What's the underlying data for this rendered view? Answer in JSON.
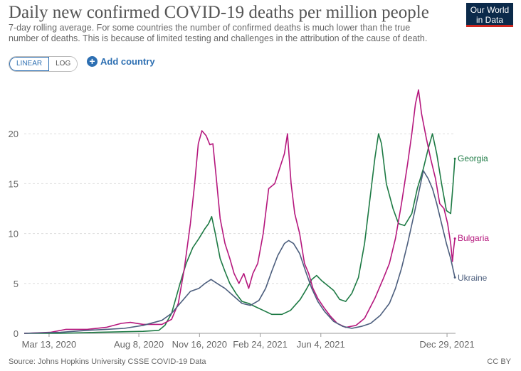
{
  "header": {
    "title": "Daily new confirmed COVID-19 deaths per million people",
    "subtitle": "7-day rolling average. For some countries the number of confirmed deaths is much lower than the true number of deaths. This is because of limited testing and challenges in the attribution of the cause of death.",
    "logo_line1": "Our World",
    "logo_line2": "in Data"
  },
  "controls": {
    "linear_label": "LINEAR",
    "log_label": "LOG",
    "add_country_label": "Add country"
  },
  "footer": {
    "source": "Source: Johns Hopkins University CSSE COVID-19 Data",
    "license": "CC BY"
  },
  "colors": {
    "Georgia": "#1d7a44",
    "Bulgaria": "#b5177d",
    "Ukraine": "#4c5e7d",
    "grid": "#dddddd",
    "axis_text": "#666666"
  },
  "chart_data": {
    "type": "line",
    "title": "Daily new confirmed COVID-19 deaths per million people",
    "x_ticks": [
      "Mar 13, 2020",
      "Aug 8, 2020",
      "Nov 16, 2020",
      "Feb 24, 2021",
      "Jun 4, 2021",
      "Dec 29, 2021"
    ],
    "x_range": [
      "2020-02-01",
      "2022-01-12"
    ],
    "ylim": [
      0,
      25
    ],
    "y_ticks": [
      0,
      5,
      10,
      15,
      20
    ],
    "grid": true,
    "legend": "right, at line ends",
    "series": [
      {
        "name": "Georgia",
        "points": [
          [
            "2020-02-01",
            0
          ],
          [
            "2020-04-01",
            0
          ],
          [
            "2020-06-01",
            0.1
          ],
          [
            "2020-08-15",
            0.2
          ],
          [
            "2020-09-10",
            0.3
          ],
          [
            "2020-09-20",
            0.8
          ],
          [
            "2020-10-01",
            2
          ],
          [
            "2020-10-15",
            5
          ],
          [
            "2020-10-25",
            7
          ],
          [
            "2020-11-05",
            8.6
          ],
          [
            "2020-11-15",
            9.5
          ],
          [
            "2020-11-25",
            10.5
          ],
          [
            "2020-12-01",
            11
          ],
          [
            "2020-12-06",
            11.7
          ],
          [
            "2020-12-12",
            10
          ],
          [
            "2020-12-20",
            7.5
          ],
          [
            "2020-12-28",
            6.2
          ],
          [
            "2021-01-05",
            5
          ],
          [
            "2021-01-15",
            4
          ],
          [
            "2021-01-25",
            3.2
          ],
          [
            "2021-02-05",
            3
          ],
          [
            "2021-02-15",
            2.7
          ],
          [
            "2021-03-01",
            2.3
          ],
          [
            "2021-03-15",
            1.9
          ],
          [
            "2021-04-01",
            1.9
          ],
          [
            "2021-04-15",
            2.3
          ],
          [
            "2021-05-01",
            3.4
          ],
          [
            "2021-05-10",
            4.3
          ],
          [
            "2021-05-20",
            5.4
          ],
          [
            "2021-05-28",
            5.8
          ],
          [
            "2021-06-05",
            5.3
          ],
          [
            "2021-06-15",
            4.8
          ],
          [
            "2021-06-25",
            4.3
          ],
          [
            "2021-07-05",
            3.4
          ],
          [
            "2021-07-15",
            3.2
          ],
          [
            "2021-07-25",
            4
          ],
          [
            "2021-08-05",
            5.6
          ],
          [
            "2021-08-15",
            9
          ],
          [
            "2021-08-25",
            14
          ],
          [
            "2021-09-01",
            17.5
          ],
          [
            "2021-09-07",
            20
          ],
          [
            "2021-09-12",
            19
          ],
          [
            "2021-09-20",
            15
          ],
          [
            "2021-10-01",
            12.5
          ],
          [
            "2021-10-10",
            11
          ],
          [
            "2021-10-20",
            10.8
          ],
          [
            "2021-11-01",
            12
          ],
          [
            "2021-11-10",
            14.5
          ],
          [
            "2021-11-20",
            16.5
          ],
          [
            "2021-11-28",
            18.5
          ],
          [
            "2021-12-05",
            20
          ],
          [
            "2021-12-12",
            18
          ],
          [
            "2021-12-20",
            15
          ],
          [
            "2021-12-28",
            12.3
          ],
          [
            "2022-01-04",
            12
          ],
          [
            "2022-01-08",
            15
          ],
          [
            "2022-01-11",
            17.5
          ]
        ]
      },
      {
        "name": "Bulgaria",
        "points": [
          [
            "2020-02-01",
            0
          ],
          [
            "2020-03-15",
            0.1
          ],
          [
            "2020-04-10",
            0.4
          ],
          [
            "2020-05-15",
            0.4
          ],
          [
            "2020-06-15",
            0.6
          ],
          [
            "2020-07-10",
            1
          ],
          [
            "2020-07-25",
            1.1
          ],
          [
            "2020-08-15",
            0.9
          ],
          [
            "2020-09-15",
            0.9
          ],
          [
            "2020-10-01",
            1.4
          ],
          [
            "2020-10-12",
            3
          ],
          [
            "2020-10-22",
            6.5
          ],
          [
            "2020-11-01",
            11
          ],
          [
            "2020-11-08",
            15
          ],
          [
            "2020-11-14",
            19
          ],
          [
            "2020-11-20",
            20.3
          ],
          [
            "2020-11-27",
            19.8
          ],
          [
            "2020-12-03",
            18.9
          ],
          [
            "2020-12-08",
            19
          ],
          [
            "2020-12-13",
            16
          ],
          [
            "2020-12-20",
            11.5
          ],
          [
            "2020-12-28",
            9
          ],
          [
            "2021-01-05",
            7.5
          ],
          [
            "2021-01-12",
            6
          ],
          [
            "2021-01-20",
            5
          ],
          [
            "2021-01-28",
            6
          ],
          [
            "2021-02-05",
            4.5
          ],
          [
            "2021-02-12",
            6
          ],
          [
            "2021-02-20",
            7
          ],
          [
            "2021-03-01",
            10
          ],
          [
            "2021-03-10",
            14.5
          ],
          [
            "2021-03-20",
            15
          ],
          [
            "2021-03-28",
            16.5
          ],
          [
            "2021-04-05",
            18
          ],
          [
            "2021-04-10",
            20
          ],
          [
            "2021-04-16",
            15
          ],
          [
            "2021-04-22",
            12
          ],
          [
            "2021-04-30",
            10
          ],
          [
            "2021-05-08",
            7
          ],
          [
            "2021-05-15",
            6
          ],
          [
            "2021-05-22",
            4.5
          ],
          [
            "2021-05-30",
            3.5
          ],
          [
            "2021-06-10",
            2.5
          ],
          [
            "2021-06-20",
            1.7
          ],
          [
            "2021-07-01",
            1
          ],
          [
            "2021-07-15",
            0.6
          ],
          [
            "2021-08-01",
            0.8
          ],
          [
            "2021-08-15",
            1.5
          ],
          [
            "2021-09-01",
            3.5
          ],
          [
            "2021-09-15",
            5.5
          ],
          [
            "2021-09-25",
            7
          ],
          [
            "2021-10-05",
            9.5
          ],
          [
            "2021-10-15",
            13
          ],
          [
            "2021-10-25",
            17
          ],
          [
            "2021-11-01",
            20
          ],
          [
            "2021-11-07",
            23
          ],
          [
            "2021-11-12",
            24.4
          ],
          [
            "2021-11-17",
            22
          ],
          [
            "2021-11-25",
            19.5
          ],
          [
            "2021-12-02",
            17.5
          ],
          [
            "2021-12-10",
            15.5
          ],
          [
            "2021-12-17",
            13
          ],
          [
            "2021-12-24",
            12.5
          ],
          [
            "2021-12-30",
            11
          ],
          [
            "2022-01-04",
            9
          ],
          [
            "2022-01-07",
            7.2
          ],
          [
            "2022-01-09",
            8.5
          ],
          [
            "2022-01-11",
            9.5
          ]
        ]
      },
      {
        "name": "Ukraine",
        "points": [
          [
            "2020-02-01",
            0
          ],
          [
            "2020-04-01",
            0.1
          ],
          [
            "2020-05-15",
            0.3
          ],
          [
            "2020-06-15",
            0.4
          ],
          [
            "2020-07-15",
            0.5
          ],
          [
            "2020-08-15",
            0.8
          ],
          [
            "2020-09-15",
            1.3
          ],
          [
            "2020-10-01",
            2
          ],
          [
            "2020-10-15",
            3
          ],
          [
            "2020-11-01",
            4.2
          ],
          [
            "2020-11-15",
            4.5
          ],
          [
            "2020-11-25",
            5
          ],
          [
            "2020-12-05",
            5.4
          ],
          [
            "2020-12-15",
            5
          ],
          [
            "2020-12-28",
            4.5
          ],
          [
            "2021-01-10",
            3.8
          ],
          [
            "2021-01-25",
            3
          ],
          [
            "2021-02-08",
            2.8
          ],
          [
            "2021-02-22",
            3.3
          ],
          [
            "2021-03-05",
            4.5
          ],
          [
            "2021-03-15",
            6.2
          ],
          [
            "2021-03-25",
            7.8
          ],
          [
            "2021-04-05",
            9
          ],
          [
            "2021-04-12",
            9.3
          ],
          [
            "2021-04-20",
            9
          ],
          [
            "2021-04-30",
            8
          ],
          [
            "2021-05-10",
            6.2
          ],
          [
            "2021-05-20",
            4.5
          ],
          [
            "2021-05-30",
            3.2
          ],
          [
            "2021-06-10",
            2.2
          ],
          [
            "2021-06-25",
            1.2
          ],
          [
            "2021-07-10",
            0.7
          ],
          [
            "2021-07-25",
            0.5
          ],
          [
            "2021-08-10",
            0.7
          ],
          [
            "2021-08-25",
            1
          ],
          [
            "2021-09-10",
            1.8
          ],
          [
            "2021-09-25",
            3
          ],
          [
            "2021-10-05",
            4.5
          ],
          [
            "2021-10-15",
            6.5
          ],
          [
            "2021-10-25",
            9
          ],
          [
            "2021-11-05",
            12
          ],
          [
            "2021-11-12",
            14
          ],
          [
            "2021-11-20",
            16.3
          ],
          [
            "2021-11-28",
            15.5
          ],
          [
            "2021-12-05",
            14.5
          ],
          [
            "2021-12-12",
            13
          ],
          [
            "2021-12-20",
            11
          ],
          [
            "2021-12-28",
            9
          ],
          [
            "2022-01-04",
            7.5
          ],
          [
            "2022-01-11",
            5.6
          ]
        ]
      }
    ]
  }
}
